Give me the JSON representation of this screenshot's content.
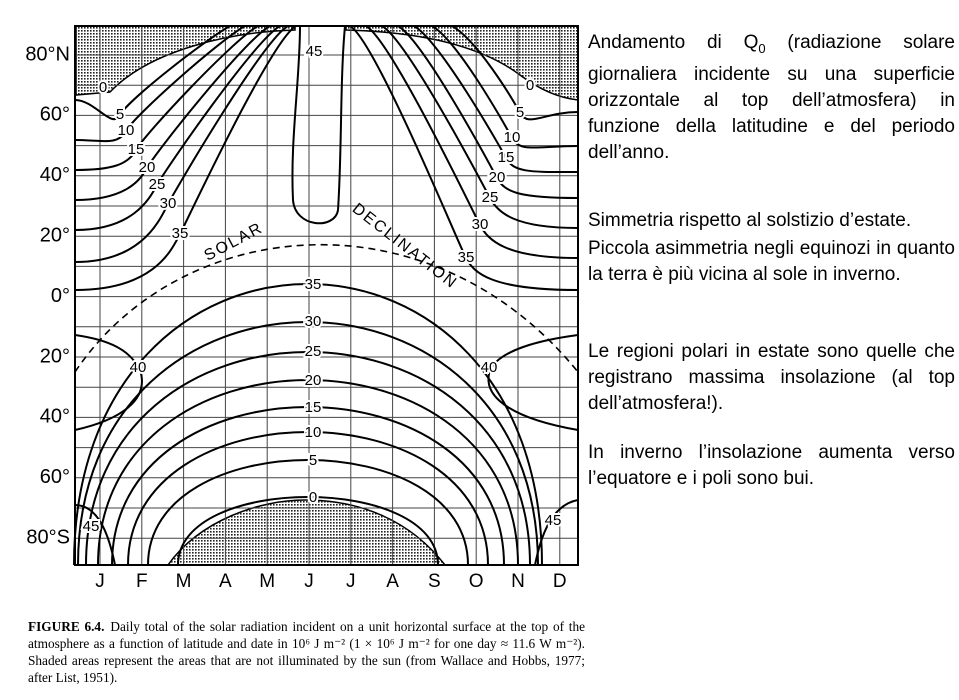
{
  "figure": {
    "lat_labels": [
      "80°N",
      "60°",
      "40°",
      "20°",
      "0°",
      "20°",
      "40°",
      "60°",
      "80°S"
    ],
    "month_labels": [
      "J",
      "F",
      "M",
      "A",
      "M",
      "J",
      "J",
      "A",
      "S",
      "O",
      "N",
      "D"
    ],
    "declination_labels": [
      "SOLAR",
      "DECLINATION"
    ],
    "contour_labels": [
      "45",
      "0",
      "5",
      "10",
      "15",
      "20",
      "25",
      "30",
      "35",
      "0",
      "5",
      "10",
      "15",
      "20",
      "25",
      "30",
      "35",
      "35",
      "30",
      "25",
      "20",
      "15",
      "10",
      "5",
      "0",
      "40",
      "40",
      "45",
      "45"
    ]
  },
  "caption": {
    "label": "FIGURE 6.4.",
    "text": "Daily total of the solar radiation incident on a unit horizontal surface at the top of the atmosphere as a function of latitude and date in 10⁶ J m⁻² (1 × 10⁶ J m⁻² for one day ≈ 11.6 W m⁻²). Shaded areas represent the areas that are not illuminated by the sun (from Wallace and Hobbs, 1977; after List, 1951)."
  },
  "notes": [
    {
      "parts": [
        "Andamento di Q",
        "0",
        " (radiazione solare giornaliera incidente su una superficie orizzontale al top dell’atmosfera) in funzione della latitudine e del periodo dell’anno."
      ]
    },
    {
      "parts": [
        "Simmetria rispetto al solstizio d’estate."
      ]
    },
    {
      "parts": [
        "Piccola asimmetria negli equinozi in quanto la terra è più vicina al sole in inverno."
      ]
    },
    {
      "parts": [
        "Le regioni polari in estate sono quelle che registrano massima insolazione (al top dell’atmosfera!)."
      ]
    },
    {
      "parts": [
        "In inverno l’insolazione aumenta verso l’equatore e i poli sono bui."
      ]
    }
  ]
}
